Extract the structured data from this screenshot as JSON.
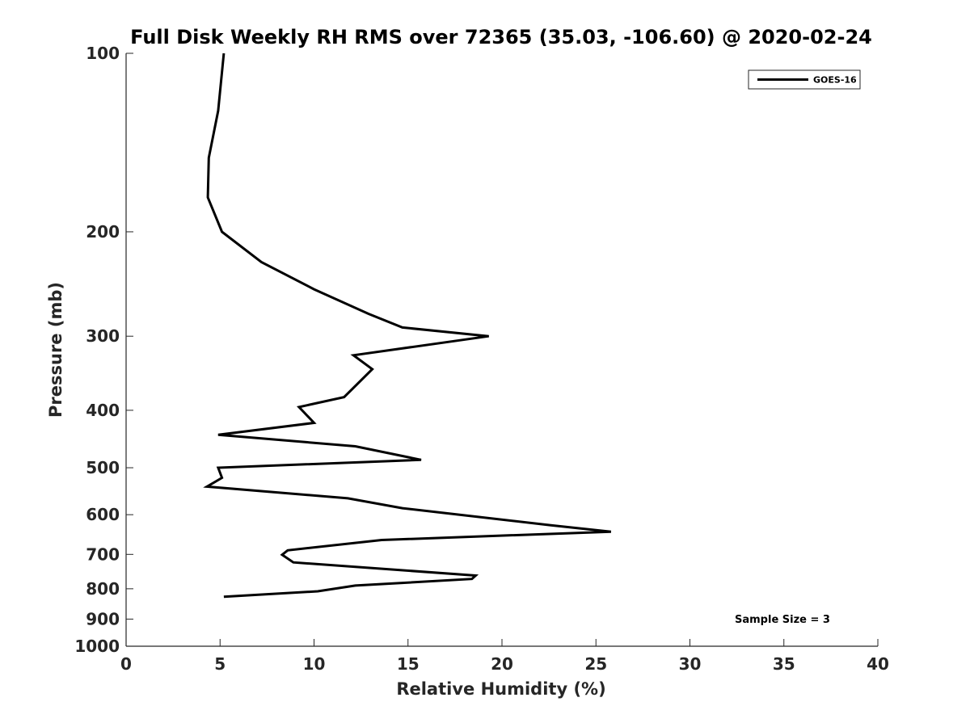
{
  "chart_data": {
    "type": "line",
    "title": "Full Disk Weekly RH RMS over 72365 (35.03, -106.60) @ 2020-02-24",
    "xlabel": "Relative Humidity (%)",
    "ylabel": "Pressure (mb)",
    "xlim": [
      0,
      40
    ],
    "ylim": [
      100,
      1000
    ],
    "yscale": "log",
    "yreversed": true,
    "xticks": [
      0,
      5,
      10,
      15,
      20,
      25,
      30,
      35,
      40
    ],
    "yticks": [
      100,
      200,
      300,
      400,
      500,
      600,
      700,
      800,
      900,
      1000
    ],
    "grid": false,
    "legend_position": "top-right",
    "annotation": "Sample Size = 3",
    "series": [
      {
        "name": "GOES-16",
        "color": "#000000",
        "points": [
          [
            5.2,
            100
          ],
          [
            4.9,
            125
          ],
          [
            4.4,
            150
          ],
          [
            4.35,
            175
          ],
          [
            5.1,
            200
          ],
          [
            7.2,
            225
          ],
          [
            10.0,
            250
          ],
          [
            12.9,
            275
          ],
          [
            14.7,
            290
          ],
          [
            19.3,
            300
          ],
          [
            12.1,
            323
          ],
          [
            13.1,
            341
          ],
          [
            11.6,
            380
          ],
          [
            9.2,
            395
          ],
          [
            10.0,
            420
          ],
          [
            4.9,
            440
          ],
          [
            12.2,
            460
          ],
          [
            15.7,
            485
          ],
          [
            4.9,
            500
          ],
          [
            5.1,
            520
          ],
          [
            4.3,
            538
          ],
          [
            11.8,
            563
          ],
          [
            14.7,
            585
          ],
          [
            22.6,
            625
          ],
          [
            25.8,
            641
          ],
          [
            13.6,
            662
          ],
          [
            8.6,
            689
          ],
          [
            8.3,
            701
          ],
          [
            8.9,
            722
          ],
          [
            18.6,
            760
          ],
          [
            18.4,
            770
          ],
          [
            12.2,
            790
          ],
          [
            10.2,
            808
          ],
          [
            5.2,
            825
          ]
        ]
      }
    ]
  }
}
